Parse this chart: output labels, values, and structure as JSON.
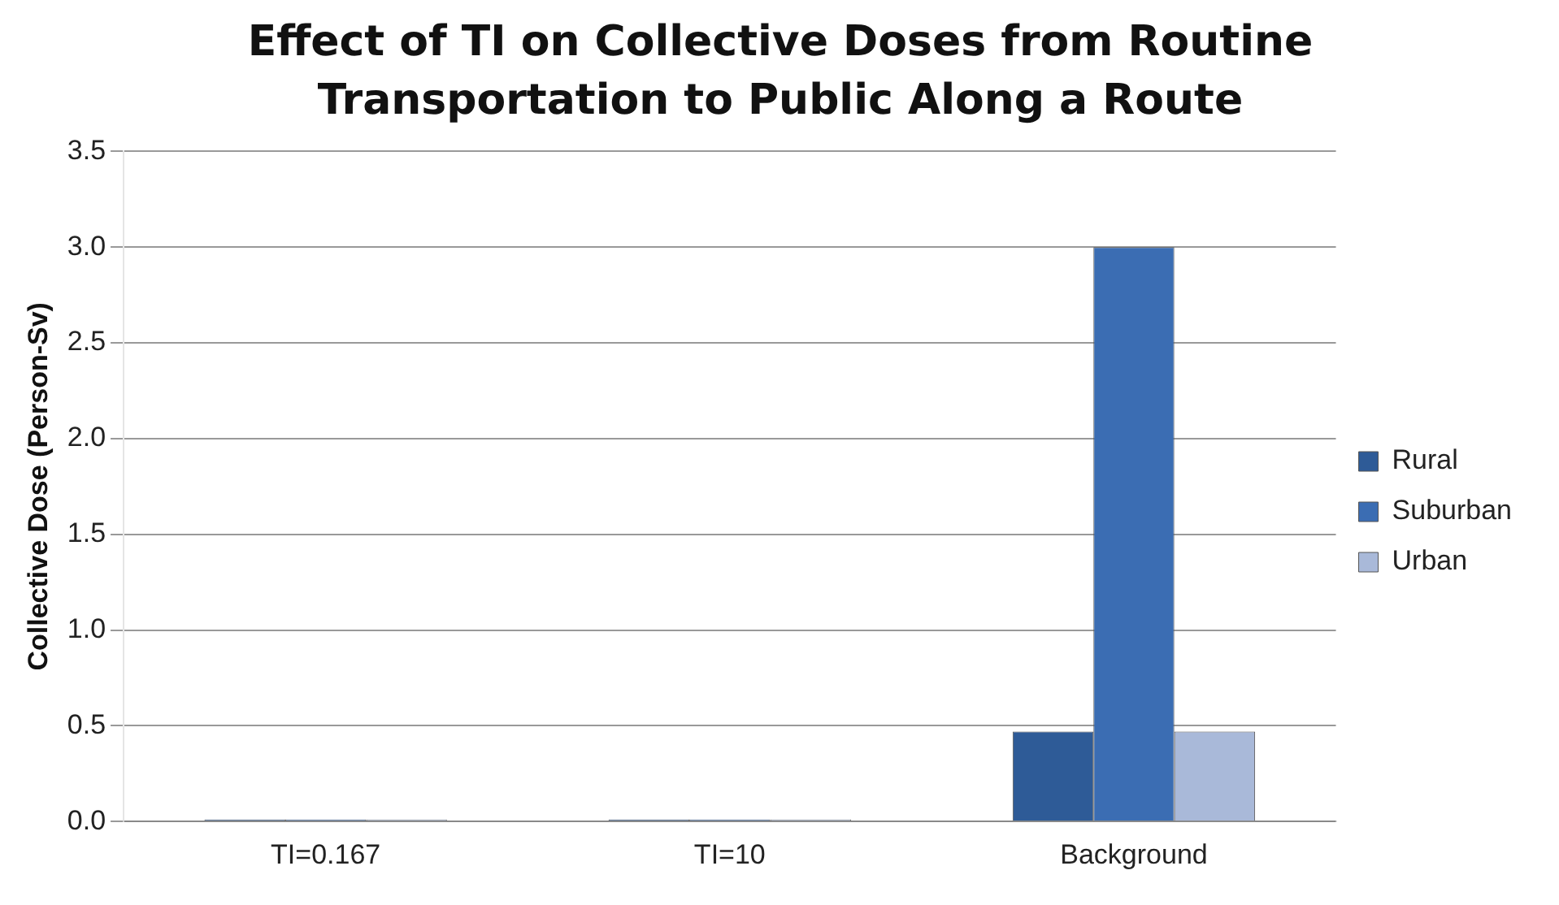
{
  "chart_data": {
    "type": "bar",
    "title": "Effect of TI on  Collective Doses from Routine Transportation to Public Along a Route",
    "ylabel": "Collective Dose (Person-Sv)",
    "categories": [
      "TI=0.167",
      "TI=10",
      "Background"
    ],
    "series": [
      {
        "name": "Rural",
        "color": "#2e5b97",
        "values": [
          0.01,
          0.01,
          0.47
        ]
      },
      {
        "name": "Suburban",
        "color": "#3b6db3",
        "values": [
          0.01,
          0.01,
          3.0
        ]
      },
      {
        "name": "Urban",
        "color": "#a9b9d9",
        "values": [
          0.01,
          0.01,
          0.47
        ]
      }
    ],
    "ylim": [
      0,
      3.5
    ],
    "yticks": [
      {
        "value": 0,
        "label": "0.0"
      },
      {
        "value": 0.5,
        "label": "0.5"
      },
      {
        "value": 1,
        "label": "1.0"
      },
      {
        "value": 1.5,
        "label": "1.5"
      },
      {
        "value": 2,
        "label": "2.0"
      },
      {
        "value": 2.5,
        "label": "2.5"
      },
      {
        "value": 3,
        "label": "3.0"
      },
      {
        "value": 3.5,
        "label": "3.5"
      }
    ],
    "grid": "y",
    "legend": "right"
  }
}
